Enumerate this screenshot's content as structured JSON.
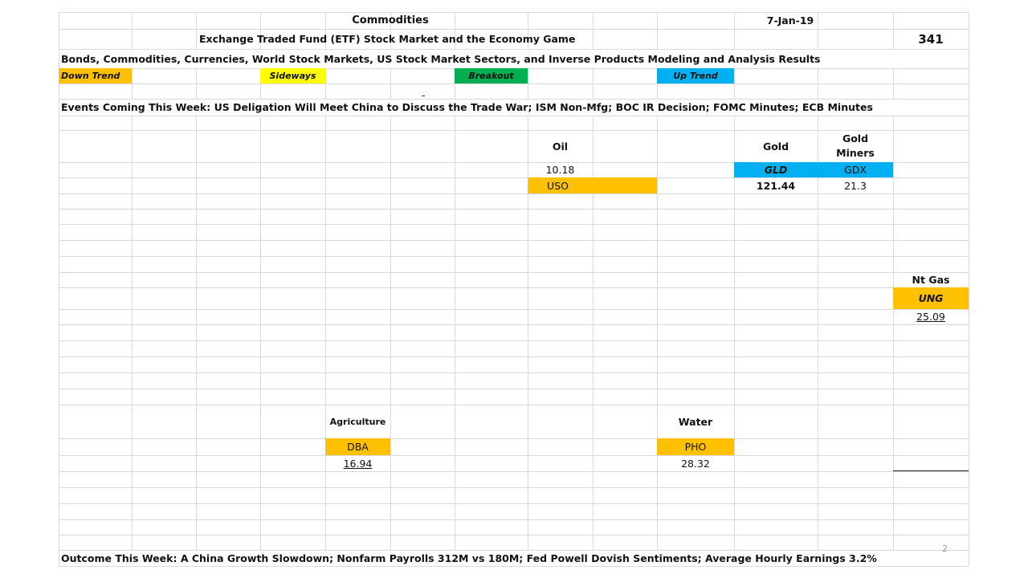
{
  "header": {
    "title": "Commodities",
    "date": "7-Jan-19",
    "subtitle": "Exchange Traded Fund (ETF) Stock Market and the Economy Game",
    "game_number": "341",
    "description": "Bonds, Commodities, Currencies, World Stock Markets, US Stock Market Sectors, and Inverse Products Modeling and Analysis Results"
  },
  "legend": [
    {
      "label": "Down Trend",
      "color": "#FFC000"
    },
    {
      "label": "Sideways",
      "color": "#FFFF00"
    },
    {
      "label": "Breakout",
      "color": "#00B050"
    },
    {
      "label": "Up Trend",
      "color": "#00B0F0"
    }
  ],
  "events": "Events Coming This Week: US Deligation Will Meet China to Discuss the Trade War; ISM Non-Mfg; BOC IR Decision; FOMC Minutes; ECB Minutes",
  "commodities": {
    "oil": {
      "category": "Oil",
      "value": "10.18",
      "ticker": "USO",
      "trend_color": "#FFC000"
    },
    "gold": {
      "category": "Gold",
      "ticker": "GLD",
      "value": "121.44",
      "trend_color": "#00B0F0"
    },
    "gold_miners": {
      "category_line1": "Gold",
      "category_line2": "Miners",
      "ticker": "GDX",
      "value": "21.3",
      "trend_color": "#00B0F0"
    },
    "natural_gas": {
      "category": "Nt Gas",
      "ticker": "UNG",
      "value": "25.09",
      "trend_color": "#FFC000"
    },
    "agriculture": {
      "category": "Agriculture",
      "ticker": "DBA",
      "value": "16.94",
      "trend_color": "#FFC000"
    },
    "water": {
      "category": "Water",
      "ticker": "PHO",
      "value": "28.32",
      "trend_color": "#FFC000"
    }
  },
  "outcome": "Outcome This Week: A China Growth Slowdown; Nonfarm Payrolls 312M vs 180M;  Fed Powell Dovish Sentiments; Average Hourly Earnings 3.2%",
  "page_number": "2"
}
